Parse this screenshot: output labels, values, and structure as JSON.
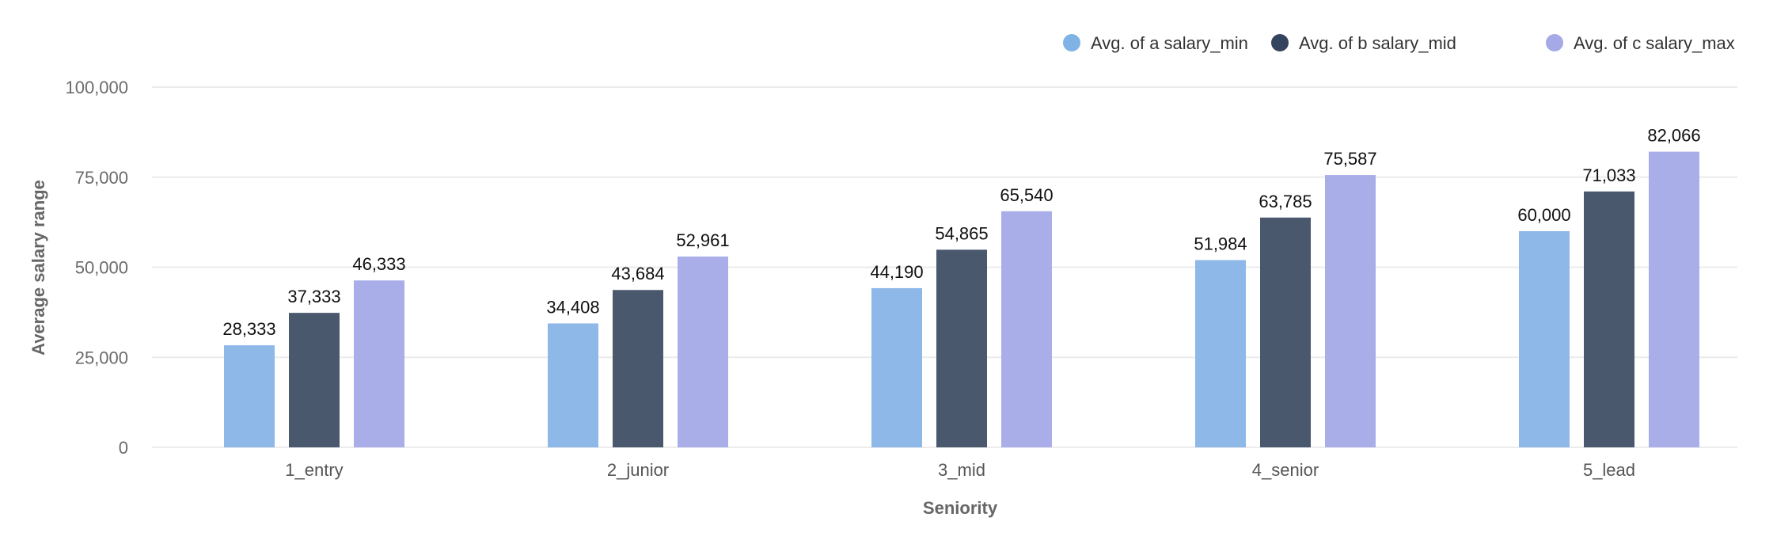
{
  "chart_data": {
    "type": "bar",
    "title": "",
    "xlabel": "Seniority",
    "ylabel": "Average salary range",
    "ylim": [
      0,
      100000
    ],
    "yticks": [
      0,
      25000,
      50000,
      75000,
      100000
    ],
    "ytick_labels": [
      "0",
      "25,000",
      "50,000",
      "75,000",
      "100,000"
    ],
    "grid": true,
    "legend_position": "top-right",
    "categories": [
      "1_entry",
      "2_junior",
      "3_mid",
      "4_senior",
      "5_lead"
    ],
    "series": [
      {
        "name": "Avg. of a salary_min",
        "color": "#8db8e8",
        "legend_color": "#7fb2e5",
        "values": [
          28333,
          34408,
          44190,
          51984,
          60000
        ],
        "labels": [
          "28,333",
          "34,408",
          "44,190",
          "51,984",
          "60,000"
        ]
      },
      {
        "name": "Avg. of b salary_mid",
        "color": "#4a586e",
        "legend_color": "#34435e",
        "values": [
          37333,
          43684,
          54865,
          63785,
          71033
        ],
        "labels": [
          "37,333",
          "43,684",
          "54,865",
          "63,785",
          "71,033"
        ]
      },
      {
        "name": "Avg. of c salary_max",
        "color": "#aaaee8",
        "legend_color": "#a5a9e6",
        "values": [
          46333,
          52961,
          65540,
          75587,
          82066
        ],
        "labels": [
          "46,333",
          "52,961",
          "65,540",
          "75,587",
          "82,066"
        ]
      }
    ]
  }
}
